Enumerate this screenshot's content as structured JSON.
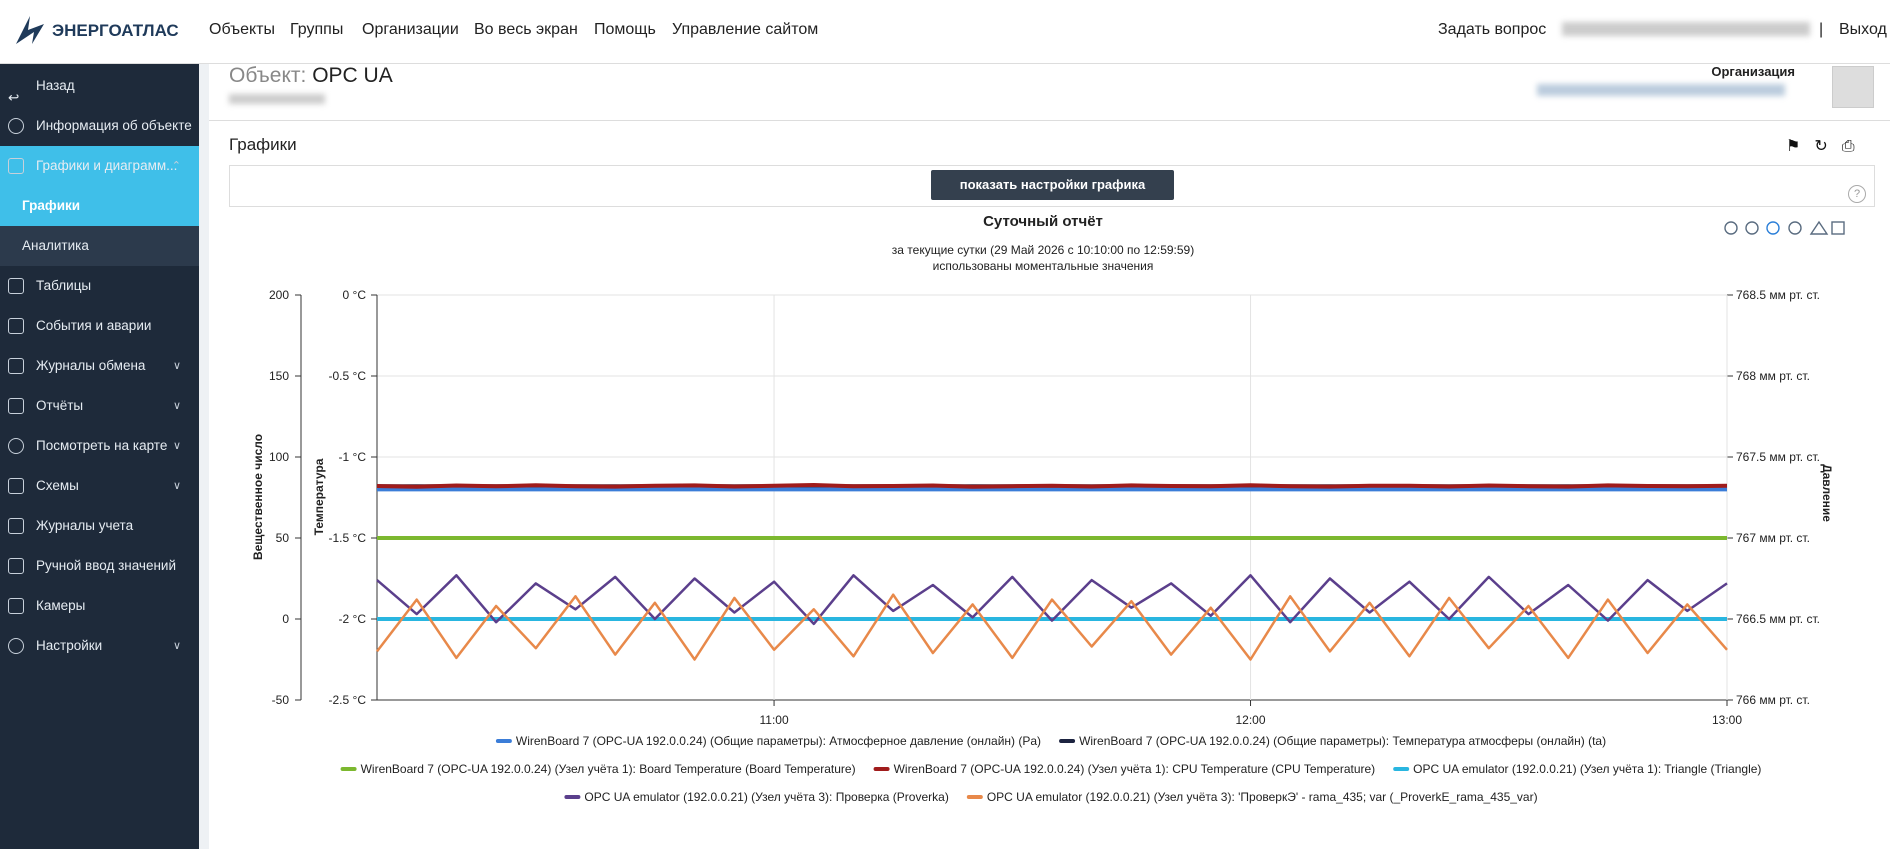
{
  "nav": {
    "logo": "ЭНЕРГОАТЛАС",
    "items": [
      "Объекты",
      "Группы",
      "Организации",
      "Во весь экран",
      "Помощь",
      "Управление сайтом"
    ],
    "ask": "Задать вопрос",
    "separator": "|",
    "logout": "Выход"
  },
  "sidebar": {
    "items": [
      "Назад",
      "Информация об объекте",
      "Графики и диаграмм...",
      "Графики",
      "Аналитика",
      "Таблицы",
      "События и аварии",
      "Журналы обмена",
      "Отчёты",
      "Посмотреть на карте",
      "Схемы",
      "Журналы учета",
      "Ручной ввод значений",
      "Камеры",
      "Настройки"
    ]
  },
  "header": {
    "object_label": "Объект:",
    "object_name": "OPC UA",
    "organization_label": "Организация"
  },
  "panel": {
    "title": "Графики",
    "button": "показать настройки графика",
    "help": "?"
  },
  "chart_data": {
    "type": "line",
    "title": "Суточный отчёт",
    "subtitle": "за текущие сутки (29 Май 2026 с 10:10:00 по 12:59:59)",
    "subtitle2": "использованы моментальные значения",
    "y_label": "Вещественное число",
    "y2_label": "Температура",
    "y3_label": "Давление",
    "x": [
      610,
      615,
      620,
      625,
      630,
      635,
      640,
      645,
      650,
      655,
      660,
      665,
      670,
      675,
      680,
      685,
      690,
      695,
      700,
      705,
      710,
      715,
      720,
      725,
      730,
      735,
      740,
      745,
      750,
      755,
      760,
      765,
      770,
      775,
      780
    ],
    "xlim": [
      610,
      780
    ],
    "xticks": [
      {
        "value": 660,
        "label": "11:00"
      },
      {
        "value": 720,
        "label": "12:00"
      },
      {
        "value": 780,
        "label": "13:00"
      }
    ],
    "ylim": [
      -50,
      200
    ],
    "yticks": [
      200,
      150,
      100,
      50,
      0,
      -50
    ],
    "y2lim": [
      -2.5,
      0
    ],
    "y2ticks": [
      {
        "value": 0,
        "label": "0 °C"
      },
      {
        "value": -0.5,
        "label": "-0.5 °C"
      },
      {
        "value": -1,
        "label": "-1 °C"
      },
      {
        "value": -1.5,
        "label": "-1.5 °C"
      },
      {
        "value": -2,
        "label": "-2 °C"
      },
      {
        "value": -2.5,
        "label": "-2.5 °C"
      }
    ],
    "y3lim": [
      766,
      768.5
    ],
    "y3ticks": [
      {
        "value": 768.5,
        "label": "768.5 мм рт. ст."
      },
      {
        "value": 768,
        "label": "768 мм рт. ст."
      },
      {
        "value": 767.5,
        "label": "767.5 мм рт. ст."
      },
      {
        "value": 767,
        "label": "767 мм рт. ст."
      },
      {
        "value": 766.5,
        "label": "766.5 мм рт. ст."
      },
      {
        "value": 766,
        "label": "766 мм рт. ст."
      }
    ],
    "grid": true,
    "legend": "bottom",
    "series": [
      {
        "name": "WirenBoard 7 (OPC-UA 192.0.0.24) (Общие параметры): Атмосферное давление (онлайн) (Pa)",
        "color": "#3b7dd8",
        "axis": "y3",
        "values": [
          767.3,
          767.3,
          767.3,
          767.3,
          767.3,
          767.3,
          767.3,
          767.3,
          767.3,
          767.3,
          767.3,
          767.3,
          767.3,
          767.3,
          767.3,
          767.3,
          767.3,
          767.3,
          767.3,
          767.3,
          767.3,
          767.3,
          767.3,
          767.3,
          767.3,
          767.3,
          767.3,
          767.3,
          767.3,
          767.3,
          767.3,
          767.3,
          767.3,
          767.3,
          767.3
        ]
      },
      {
        "name": "WirenBoard 7 (OPC-UA 192.0.0.24) (Общие параметры): Температура атмосферы (онлайн) (ta)",
        "color": "#1c2340",
        "axis": "y2",
        "values": [
          -1.18,
          -1.18,
          -1.18,
          -1.18,
          -1.18,
          -1.18,
          -1.18,
          -1.18,
          -1.18,
          -1.18,
          -1.18,
          -1.18,
          -1.18,
          -1.18,
          -1.18,
          -1.18,
          -1.18,
          -1.18,
          -1.18,
          -1.18,
          -1.18,
          -1.18,
          -1.18,
          -1.18,
          -1.18,
          -1.18,
          -1.18,
          -1.18,
          -1.18,
          -1.18,
          -1.18,
          -1.18,
          -1.18,
          -1.18,
          -1.18
        ]
      },
      {
        "name": "WirenBoard 7 (OPC-UA 192.0.0.24) (Узел учёта 1): Board Temperature (Board Temperature)",
        "color": "#7cb82f",
        "values": [
          50,
          50,
          50,
          50,
          50,
          50,
          50,
          50,
          50,
          50,
          50,
          50,
          50,
          50,
          50,
          50,
          50,
          50,
          50,
          50,
          50,
          50,
          50,
          50,
          50,
          50,
          50,
          50,
          50,
          50,
          50,
          50,
          50,
          50,
          50
        ]
      },
      {
        "name": "WirenBoard 7 (OPC-UA 192.0.0.24) (Узел учёта 1): CPU Temperature (CPU Temperature)",
        "color": "#a01c1c",
        "values": [
          82.1,
          81.6,
          82.4,
          81.9,
          82.6,
          82.0,
          81.7,
          82.3,
          82.5,
          81.8,
          82.2,
          82.7,
          81.9,
          82.1,
          82.4,
          81.6,
          82.0,
          82.3,
          81.8,
          82.5,
          82.1,
          81.9,
          82.6,
          82.0,
          81.7,
          82.3,
          82.2,
          81.8,
          82.4,
          82.0,
          81.7,
          82.5,
          82.1,
          81.9,
          82.2
        ]
      },
      {
        "name": "OPC UA emulator (192.0.0.21) (Узел учёта 1): Triangle (Triangle)",
        "color": "#29b6e0",
        "values": [
          0,
          0,
          0,
          0,
          0,
          0,
          0,
          0,
          0,
          0,
          0,
          0,
          0,
          0,
          0,
          0,
          0,
          0,
          0,
          0,
          0,
          0,
          0,
          0,
          0,
          0,
          0,
          0,
          0,
          0,
          0,
          0,
          0,
          0,
          0
        ]
      },
      {
        "name": "OPC UA emulator (192.0.0.21) (Узел учёта 3): Проверка (Proverka)",
        "color": "#5b3f8c",
        "values": [
          24,
          3,
          27,
          -2,
          22,
          6,
          26,
          0,
          25,
          4,
          23,
          -3,
          27,
          5,
          21,
          1,
          26,
          -1,
          24,
          7,
          22,
          2,
          27,
          -2,
          25,
          4,
          23,
          0,
          26,
          3,
          21,
          -1,
          24,
          5,
          22
        ]
      },
      {
        "name": "OPC UA emulator (192.0.0.21) (Узел учёта 3): 'ПроверкЭ' - rama_435; var (_ProverkE_rama_435_var)",
        "color": "#e8894a",
        "values": [
          -20,
          12,
          -24,
          8,
          -18,
          14,
          -22,
          10,
          -25,
          13,
          -19,
          6,
          -23,
          15,
          -21,
          9,
          -24,
          12,
          -17,
          11,
          -22,
          7,
          -25,
          14,
          -20,
          10,
          -23,
          13,
          -18,
          8,
          -24,
          12,
          -21,
          9,
          -19
        ]
      }
    ]
  }
}
